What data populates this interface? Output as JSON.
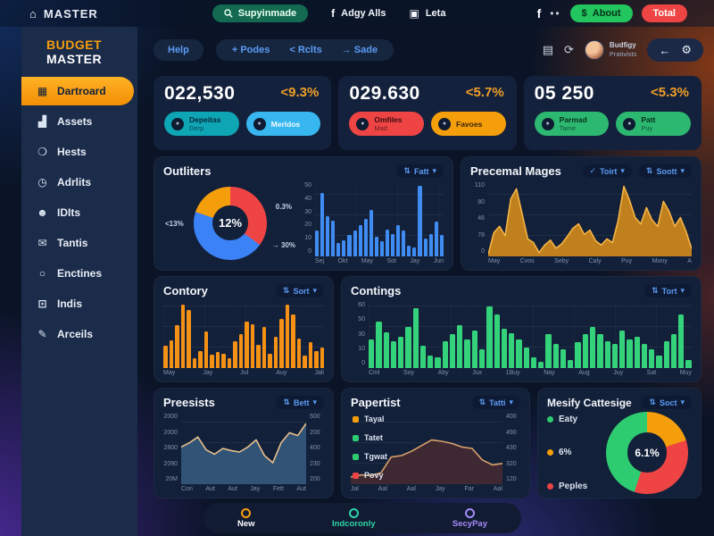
{
  "icons": {
    "bank": "⌂",
    "fb": "f",
    "gift": "▣",
    "dots": "••",
    "doc": "▤",
    "refresh": "⟳",
    "back": "←",
    "gear": "⚙",
    "check": "✓",
    "sort": "⇅",
    "caret": "▾",
    "dollar": "$"
  },
  "topbar": {
    "brand": "MASTER",
    "search_label": "Supyinmade",
    "social_label": "Adgy Alls",
    "leta_label": "Leta",
    "about_label": "About",
    "total_label": "Total"
  },
  "header": {
    "help": "Help",
    "podes": "+ Podes",
    "rclts": "< Rclts",
    "sade": "→ Sade",
    "user_name": "Budfigy",
    "user_role": "Prativists"
  },
  "sidebar": {
    "logo_line1": "BUDGET",
    "logo_line2": "MASTER",
    "items": [
      {
        "icon": "▦",
        "label": "Dartroard",
        "active": true
      },
      {
        "icon": "▟",
        "label": "Assets"
      },
      {
        "icon": "❍",
        "label": "Hests"
      },
      {
        "icon": "◷",
        "label": "Adrlits"
      },
      {
        "icon": "☻",
        "label": "IDIts"
      },
      {
        "icon": "✉",
        "label": "Tantis"
      },
      {
        "icon": "○",
        "label": "Enctines"
      },
      {
        "icon": "⊡",
        "label": "Indis"
      },
      {
        "icon": "✎",
        "label": "Arceils"
      }
    ]
  },
  "stats": [
    {
      "value": "022,530",
      "delta": "<9.3%",
      "pills": [
        {
          "label": "Depeitas",
          "sub": "Derp",
          "color": "#0ea5b5",
          "text": "#07283a"
        },
        {
          "label": "Merldos",
          "sub": "",
          "color": "#38b6f0",
          "text": "#f2faff"
        }
      ]
    },
    {
      "value": "029.630",
      "delta": "<5.7%",
      "pills": [
        {
          "label": "Omfiles",
          "sub": "Mad",
          "color": "#ef4444",
          "text": "#3a0d12"
        },
        {
          "label": "Favoes",
          "sub": "",
          "color": "#f59e0b",
          "text": "#3a2405"
        }
      ]
    },
    {
      "value": "05 250",
      "delta": "<5.3%",
      "pills": [
        {
          "label": "Parmad",
          "sub": "Tame",
          "color": "#2db871",
          "text": "#06301a"
        },
        {
          "label": "Patt",
          "sub": "Puy",
          "color": "#2db871",
          "text": "#06301a"
        }
      ]
    }
  ],
  "chart_data": {
    "outliters": {
      "type": "donut+bar",
      "title": "Outliters",
      "sort_label": "Fatt",
      "donut": {
        "center": "12%",
        "label_left": "<13%",
        "label_right": "0.3%",
        "label_bottom": "→ 30%",
        "slices": [
          {
            "color": "#ef4444",
            "value": 35
          },
          {
            "color": "#3b82f6",
            "value": 45
          },
          {
            "color": "#f59e0b",
            "value": 20
          }
        ]
      },
      "bars": {
        "color": "#3f8cf3",
        "max": 50,
        "values": [
          17,
          42,
          27,
          24,
          9,
          11,
          14,
          17,
          21,
          25,
          31,
          13,
          10,
          18,
          15,
          21,
          17,
          7,
          6,
          47,
          12,
          15,
          23,
          14
        ],
        "yticks": [
          "50",
          "40",
          "30",
          "20",
          "10",
          "0"
        ],
        "xticks": [
          "Sej",
          "Okt",
          "May",
          "Sot",
          "Jay",
          "Jun"
        ]
      }
    },
    "precemal": {
      "type": "area",
      "title": "Precemal Mages",
      "check_label": "Toirt",
      "sort_label": "Soott",
      "area": {
        "stroke": "#f5b445",
        "fill": "#c9861c",
        "fill_opacity": 0.95,
        "max": 120,
        "values": [
          3,
          38,
          48,
          33,
          92,
          108,
          68,
          28,
          22,
          6,
          18,
          26,
          13,
          20,
          32,
          45,
          52,
          35,
          42,
          25,
          18,
          28,
          22,
          58,
          112,
          90,
          62,
          52,
          78,
          58,
          48,
          88,
          72,
          48,
          62,
          40,
          12
        ]
      },
      "yticks": [
        "110",
        "80",
        "46",
        "78",
        "0"
      ],
      "xticks": [
        "May",
        "Cvos",
        "Seby",
        "Caly",
        "Puy",
        "Mony",
        "A"
      ]
    },
    "contory": {
      "type": "bar",
      "title": "Contory",
      "sort_label": "Sort",
      "bars": {
        "color": "#f59115",
        "max": 55,
        "values": [
          18,
          23,
          35,
          52,
          48,
          8,
          14,
          30,
          11,
          13,
          12,
          8,
          22,
          28,
          38,
          36,
          19,
          34,
          12,
          26,
          40,
          52,
          44,
          24,
          10,
          21,
          14,
          17
        ],
        "yticks": [],
        "xticks": [
          "May",
          "Jay",
          "Jul",
          "Auy",
          "Jali"
        ]
      }
    },
    "contings": {
      "type": "bar",
      "title": "Contings",
      "sort_label": "Tort",
      "bars": {
        "color": "#34d37b",
        "max": 65,
        "values": [
          28,
          45,
          35,
          26,
          30,
          40,
          58,
          22,
          12,
          10,
          26,
          33,
          42,
          28,
          36,
          18,
          60,
          52,
          38,
          34,
          28,
          20,
          10,
          6,
          33,
          23,
          18,
          8,
          25,
          33,
          40,
          33,
          26,
          23,
          36,
          28,
          30,
          23,
          18,
          12,
          26,
          33,
          52,
          8
        ],
        "yticks": [
          "60",
          "50",
          "30",
          "10",
          "0"
        ],
        "xticks": [
          "Cml",
          "Soy",
          "Aby",
          "Jux",
          "1Buy",
          "Nay",
          "Aug",
          "Juy",
          "Sat",
          "Muy"
        ]
      }
    },
    "preesists": {
      "type": "line",
      "title": "Preesists",
      "sort_label": "Bett",
      "line": {
        "stroke": "#e9c08c",
        "fill": "#35597d",
        "fill_opacity": 0.9,
        "max": 100,
        "values": [
          52,
          58,
          66,
          48,
          42,
          50,
          47,
          45,
          52,
          62,
          40,
          30,
          58,
          72,
          68,
          85
        ]
      },
      "yticks_left": [
        "2000",
        "2000",
        "2800",
        "2090",
        "20M"
      ],
      "yticks_right": [
        "500",
        "200",
        "400",
        "230",
        "200"
      ],
      "xticks": [
        "Con",
        "Aut",
        "Aut",
        "Jay",
        "Fett",
        "Aut"
      ]
    },
    "papertist": {
      "type": "line",
      "title": "Papertist",
      "sort_label": "Tatti",
      "line": {
        "stroke": "#d8a06b",
        "fill": "#402a33",
        "fill_opacity": 0.95,
        "max": 100,
        "values": [
          10,
          13,
          12,
          16,
          38,
          40,
          46,
          54,
          62,
          60,
          57,
          52,
          50,
          34,
          27,
          29
        ]
      },
      "legend": [
        {
          "label": "Tayal",
          "color": "#f59e0b"
        },
        {
          "label": "Tatet",
          "color": "#2ecc71"
        },
        {
          "label": "Tgwat",
          "color": "#2ecc71"
        },
        {
          "label": "Povy",
          "color": "#ef4444"
        }
      ],
      "yticks_right": [
        "400",
        "490",
        "430",
        "320",
        "120"
      ],
      "xticks": [
        "Jal",
        "Aal",
        "Aal",
        "Jay",
        "Far",
        "Aal"
      ]
    },
    "mesify": {
      "type": "donut",
      "title": "Mesify Cattesige",
      "sort_label": "Soct",
      "donut": {
        "center": "6.1%",
        "slices": [
          {
            "color": "#f59e0b",
            "value": 20
          },
          {
            "color": "#ef4444",
            "value": 35
          },
          {
            "color": "#2ecc71",
            "value": 45
          }
        ]
      },
      "legend": [
        {
          "label": "Eaty",
          "color": "#2ecc71"
        },
        {
          "label": "6%",
          "color": "#f59e0b"
        },
        {
          "label": "Peples",
          "color": "#ef4444"
        }
      ]
    }
  },
  "bottombar": [
    {
      "label": "New",
      "color": "#ffffff",
      "icon_color": "#f59e0b"
    },
    {
      "label": "Indcoronly",
      "color": "#2dd4a8",
      "icon_color": "#2dd4a8"
    },
    {
      "label": "SecyPay",
      "color": "#a78bfa",
      "icon_color": "#a78bfa"
    }
  ]
}
